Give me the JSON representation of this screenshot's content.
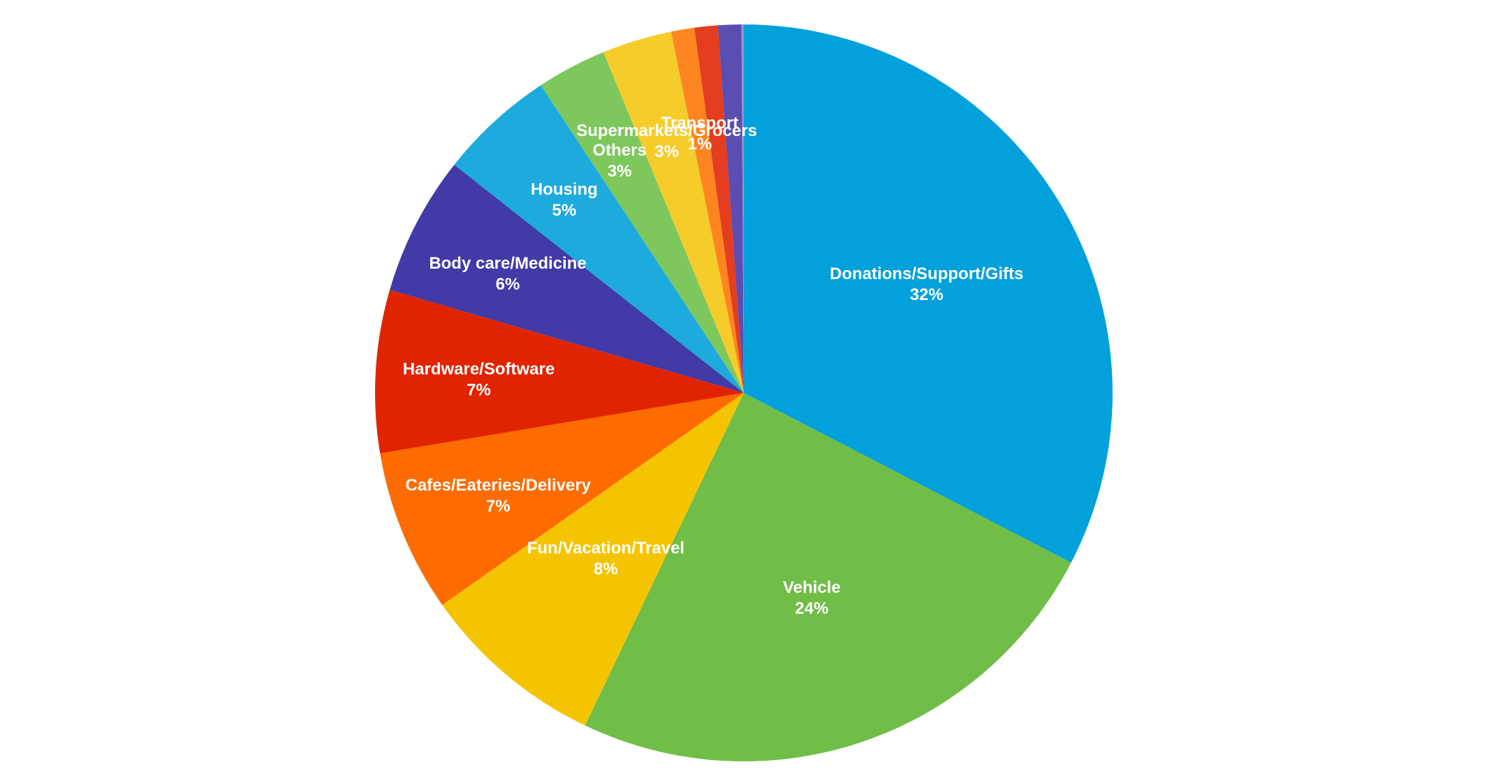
{
  "chart_data": {
    "type": "pie",
    "title": "",
    "slices": [
      {
        "label": "Donations/Support/Gifts",
        "value": 32,
        "value_label": "32%",
        "color": "#02A1DB"
      },
      {
        "label": "Vehicle",
        "value": 24,
        "value_label": "24%",
        "color": "#70BD47"
      },
      {
        "label": "Fun/Vacation/Travel",
        "value": 8,
        "value_label": "8%",
        "color": "#F5C400"
      },
      {
        "label": "Cafes/Eateries/Delivery",
        "value": 7,
        "value_label": "7%",
        "color": "#FE6B00"
      },
      {
        "label": "Hardware/Software",
        "value": 7,
        "value_label": "7%",
        "color": "#E12400"
      },
      {
        "label": "Body care/Medicine",
        "value": 6,
        "value_label": "6%",
        "color": "#423AA6"
      },
      {
        "label": "Housing",
        "value": 5,
        "value_label": "5%",
        "color": "#1DAADD"
      },
      {
        "label": "Others",
        "value": 3,
        "value_label": "3%",
        "color": "#7DC75C"
      },
      {
        "label": "Supermarkets/Grocers",
        "value": 3,
        "value_label": "3%",
        "color": "#F6CC2B"
      },
      {
        "label": "Transport",
        "value": 1,
        "value_label": "1%",
        "color": "#FE8520"
      },
      {
        "label": "",
        "value": 1,
        "value_label": "",
        "color": "#E43D1F"
      },
      {
        "label": "",
        "value": 1,
        "value_label": "",
        "color": "#5B4EB3"
      },
      {
        "label": "",
        "value": 0.1,
        "value_label": "",
        "color": "#9A8FD0"
      }
    ]
  }
}
